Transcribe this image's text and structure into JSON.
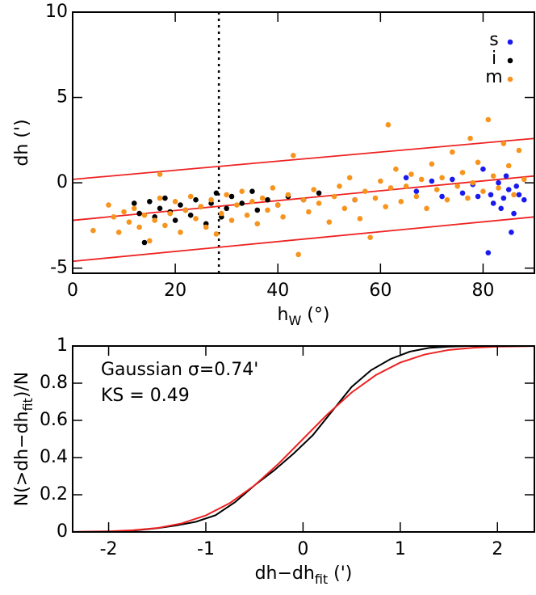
{
  "chart_data": [
    {
      "type": "scatter",
      "xlabel": {
        "base": "h",
        "sub": "W",
        "rest": " (°)"
      },
      "ylabel": "dh (')",
      "xlim": [
        0,
        90
      ],
      "ylim": [
        -5.3,
        10
      ],
      "xticks": [
        0,
        20,
        40,
        60,
        80
      ],
      "yticks": [
        -5,
        0,
        5,
        10
      ],
      "legend": "upper right",
      "vline": {
        "x": 28.5,
        "color": "#000000"
      },
      "fit_lines": {
        "color": "#ee2222",
        "lines": [
          {
            "x": [
              0,
              90
            ],
            "y": [
              0.2,
              2.6
            ]
          },
          {
            "x": [
              0,
              90
            ],
            "y": [
              -2.2,
              0.4
            ]
          },
          {
            "x": [
              0,
              90
            ],
            "y": [
              -4.6,
              -2.0
            ]
          }
        ]
      },
      "series": [
        {
          "name": "s",
          "color": "#1a1aee",
          "x": [
            55,
            65,
            67,
            70,
            72,
            74,
            76,
            78,
            79,
            80,
            81,
            81.5,
            82,
            83,
            83.5,
            84,
            84.5,
            85,
            85.5,
            86,
            86.5,
            87,
            88
          ],
          "y": [
            -1.0,
            0.3,
            -0.5,
            0.1,
            -0.8,
            0.2,
            -0.6,
            -0.1,
            -0.8,
            0.8,
            -4.1,
            -0.7,
            -1.2,
            0.0,
            -1.5,
            -0.9,
            0.4,
            -0.4,
            -2.9,
            -1.8,
            -0.2,
            -0.7,
            -1.0
          ]
        },
        {
          "name": "i",
          "color": "#000000",
          "x": [
            12,
            13,
            14,
            15,
            16,
            17,
            18,
            19,
            20,
            21,
            22,
            23,
            24,
            25,
            26,
            27,
            28,
            29,
            30,
            31,
            33,
            35,
            36,
            38,
            40,
            42,
            45,
            48
          ],
          "y": [
            -1.2,
            -1.8,
            -3.5,
            -1.1,
            -2.0,
            -1.5,
            -0.9,
            -1.7,
            -2.2,
            -1.3,
            -1.6,
            -1.9,
            -1.0,
            -1.4,
            -2.4,
            -1.2,
            -0.6,
            -2.0,
            -1.5,
            -0.8,
            -1.2,
            -0.5,
            -1.6,
            -1.0,
            -1.3,
            -0.8,
            -1.0,
            -0.6
          ]
        },
        {
          "name": "m",
          "color": "#f7941d",
          "x": [
            4,
            7,
            8,
            9,
            10,
            11,
            12,
            13,
            14,
            15,
            16,
            17,
            17,
            18,
            19,
            20,
            21,
            22,
            23,
            24,
            25,
            26,
            27,
            28,
            29,
            30,
            31,
            32,
            33,
            34,
            35,
            36,
            37,
            38,
            39,
            40,
            41,
            42,
            43,
            44,
            45,
            46,
            47,
            48,
            50,
            51,
            52,
            53,
            54,
            55,
            56,
            57,
            58,
            59,
            60,
            61,
            61.5,
            62,
            63,
            64,
            65,
            66,
            67,
            68,
            69,
            70,
            71,
            72,
            73,
            74,
            75,
            76,
            77,
            77.5,
            78,
            79,
            80,
            81,
            82,
            83,
            84,
            85,
            86,
            87,
            88
          ],
          "y": [
            -2.8,
            -1.3,
            -2.0,
            -2.9,
            -1.7,
            -2.3,
            -1.5,
            -2.6,
            -1.9,
            -3.4,
            -2.2,
            -0.9,
            0.5,
            -2.5,
            -1.8,
            -1.1,
            -2.9,
            -1.6,
            -0.8,
            -2.1,
            -1.4,
            -2.6,
            -1.0,
            -3.0,
            -1.8,
            -0.7,
            -2.2,
            -1.3,
            -0.5,
            -1.9,
            -1.1,
            -2.4,
            -0.9,
            -1.6,
            -0.3,
            -1.3,
            -2.0,
            -0.7,
            1.6,
            -4.2,
            -1.0,
            -1.7,
            -0.4,
            -1.2,
            -2.3,
            -0.8,
            -0.2,
            -1.5,
            0.3,
            -1.0,
            -2.1,
            -0.5,
            -3.2,
            -0.9,
            0.1,
            -1.4,
            3.4,
            -0.3,
            0.8,
            -1.1,
            -0.2,
            0.5,
            -0.8,
            0.2,
            -1.5,
            1.1,
            -0.4,
            0.3,
            -1.0,
            1.8,
            -0.2,
            0.6,
            -0.9,
            2.6,
            0.0,
            1.2,
            -0.5,
            3.7,
            0.4,
            -0.3,
            2.3,
            1.0,
            -0.7,
            1.9,
            0.2
          ]
        }
      ]
    },
    {
      "type": "line",
      "xlabel": {
        "base": "dh−dh",
        "sub": "fit",
        "rest": " (')"
      },
      "ylabel": {
        "base": "N(>dh−dh",
        "sub": "fit",
        "rest": ")/N"
      },
      "xlim": [
        -2.37,
        2.38
      ],
      "ylim": [
        0,
        1
      ],
      "xticks": [
        -2,
        -1,
        0,
        1,
        2
      ],
      "yticks": [
        0,
        0.2,
        0.4,
        0.6,
        0.8,
        1
      ],
      "annotations": [
        {
          "text": "Gaussian σ=0.74'",
          "color": "#ee2222"
        },
        {
          "text": "KS = 0.49",
          "color": "#000000"
        }
      ],
      "series": [
        {
          "name": "data",
          "color": "#000000",
          "x": [
            -2.37,
            -1.9,
            -1.7,
            -1.5,
            -1.3,
            -1.1,
            -0.9,
            -0.7,
            -0.5,
            -0.3,
            -0.1,
            0.1,
            0.3,
            0.5,
            0.7,
            0.9,
            1.1,
            1.3,
            1.5,
            1.7,
            2.38
          ],
          "y": [
            0,
            0.002,
            0.01,
            0.02,
            0.035,
            0.055,
            0.09,
            0.16,
            0.25,
            0.33,
            0.42,
            0.52,
            0.65,
            0.78,
            0.87,
            0.93,
            0.97,
            0.99,
            0.997,
            1.0,
            1.0
          ]
        },
        {
          "name": "gaussian",
          "color": "#ee2222",
          "x": [
            -2.37,
            -2,
            -1.75,
            -1.5,
            -1.25,
            -1,
            -0.75,
            -0.5,
            -0.25,
            0,
            0.25,
            0.5,
            0.75,
            1,
            1.25,
            1.5,
            1.75,
            2,
            2.38
          ],
          "y": [
            0.0007,
            0.0035,
            0.009,
            0.021,
            0.046,
            0.089,
            0.156,
            0.25,
            0.368,
            0.5,
            0.632,
            0.75,
            0.844,
            0.911,
            0.954,
            0.979,
            0.991,
            0.9965,
            0.9993
          ]
        }
      ]
    }
  ]
}
